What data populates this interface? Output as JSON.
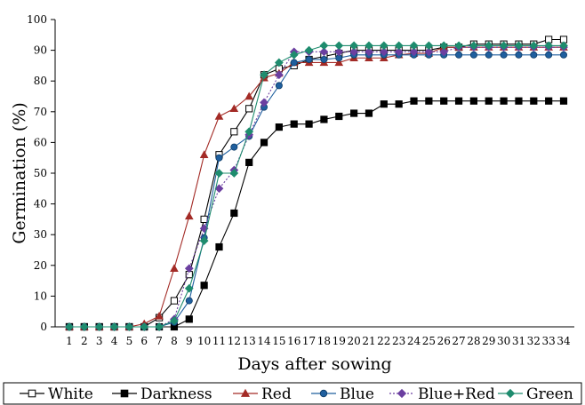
{
  "chart_data": {
    "type": "line",
    "title": "",
    "xlabel": "Days after sowing",
    "ylabel": "Germination (%)",
    "x": [
      1,
      2,
      3,
      4,
      5,
      6,
      7,
      8,
      9,
      10,
      11,
      12,
      13,
      14,
      15,
      16,
      17,
      18,
      19,
      20,
      21,
      22,
      23,
      24,
      25,
      26,
      27,
      28,
      29,
      30,
      31,
      32,
      33,
      34
    ],
    "ylim": [
      0,
      100
    ],
    "yticks": [
      0,
      10,
      20,
      30,
      40,
      50,
      60,
      70,
      80,
      90,
      100
    ],
    "grid": false,
    "legend_position": "bottom",
    "series": [
      {
        "name": "White",
        "color": "#000000",
        "marker": "square-open",
        "dashed": false,
        "values": [
          0,
          0,
          0,
          0,
          0,
          0,
          3,
          8.5,
          17,
          35,
          56,
          63.5,
          71,
          82,
          84,
          85,
          87,
          88,
          89,
          90,
          90,
          90,
          90,
          90,
          90,
          91,
          91,
          92,
          92,
          92,
          92,
          92,
          93.5,
          93.5
        ]
      },
      {
        "name": "Darkness",
        "color": "#000000",
        "marker": "square-filled",
        "dashed": false,
        "values": [
          0,
          0,
          0,
          0,
          0,
          0,
          0,
          0,
          2.5,
          13.5,
          26,
          37,
          53.5,
          60,
          65,
          66,
          66,
          67.5,
          68.5,
          69.5,
          69.5,
          72.5,
          72.5,
          73.5,
          73.5,
          73.5,
          73.5,
          73.5,
          73.5,
          73.5,
          73.5,
          73.5,
          73.5,
          73.5
        ]
      },
      {
        "name": "Red",
        "color": "#a32b26",
        "marker": "triangle",
        "dashed": false,
        "values": [
          0,
          0,
          0,
          0,
          0,
          1,
          3.5,
          19,
          36,
          56,
          68.5,
          71,
          75,
          81,
          82.5,
          86,
          86,
          86,
          86,
          87.5,
          87.5,
          87.5,
          88.5,
          89,
          89,
          91,
          91,
          91,
          91,
          91,
          91,
          91,
          91,
          91
        ]
      },
      {
        "name": "Blue",
        "color": "#1f5f9e",
        "marker": "circle",
        "dashed": false,
        "values": [
          0,
          0,
          0,
          0,
          0,
          0,
          0,
          1.5,
          8.5,
          29,
          55,
          58.5,
          62,
          71.5,
          78.5,
          86,
          87,
          87,
          87.5,
          88.5,
          88.5,
          88.5,
          88.5,
          88.5,
          88.5,
          88.5,
          88.5,
          88.5,
          88.5,
          88.5,
          88.5,
          88.5,
          88.5,
          88.5
        ]
      },
      {
        "name": "Blue+Red",
        "color": "#6b3fa0",
        "marker": "diamond",
        "dashed": true,
        "values": [
          0,
          0,
          0,
          0,
          0,
          0,
          0,
          2.5,
          19,
          32,
          45,
          51,
          62.5,
          73,
          82,
          89.5,
          89.5,
          89.5,
          89.5,
          89.5,
          89.5,
          89.5,
          89.5,
          89.5,
          89.5,
          89.5,
          91,
          91,
          91,
          91,
          91,
          91,
          91,
          91
        ]
      },
      {
        "name": "Green",
        "color": "#1e8c6e",
        "marker": "diamond",
        "dashed": false,
        "values": [
          0,
          0,
          0,
          0,
          0,
          0,
          0,
          2,
          12.5,
          28,
          50,
          50,
          63.5,
          82,
          86,
          88.5,
          90,
          91.5,
          91.5,
          91.5,
          91.5,
          91.5,
          91.5,
          91.5,
          91.5,
          91.5,
          91.5,
          91.5,
          91.5,
          91.5,
          91.5,
          91.5,
          91.5,
          91.5
        ]
      }
    ]
  }
}
